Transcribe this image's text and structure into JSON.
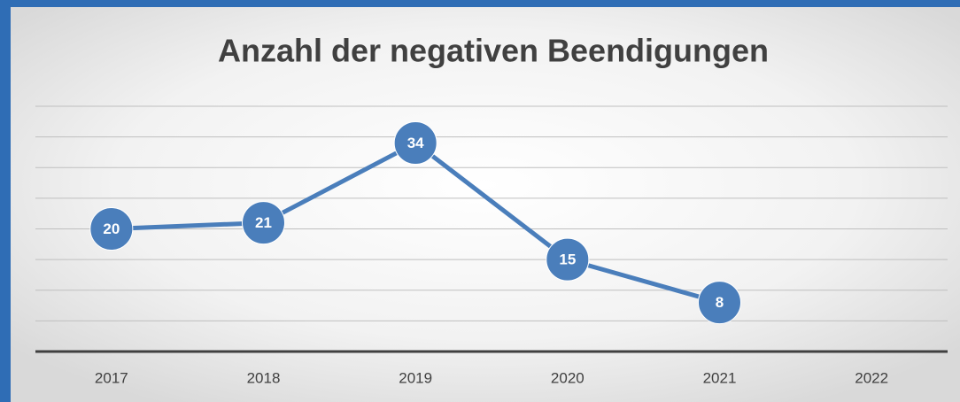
{
  "chart_data": {
    "type": "line",
    "title": "Anzahl der negativen Beendigungen",
    "categories": [
      "2017",
      "2018",
      "2019",
      "2020",
      "2021",
      "2022"
    ],
    "values": [
      20,
      21,
      34,
      15,
      8,
      null
    ],
    "color": "#4a7ebb",
    "ylim": [
      0,
      40
    ],
    "yticks": [
      0,
      5,
      10,
      15,
      20,
      25,
      30,
      35,
      40
    ],
    "grid": true
  }
}
